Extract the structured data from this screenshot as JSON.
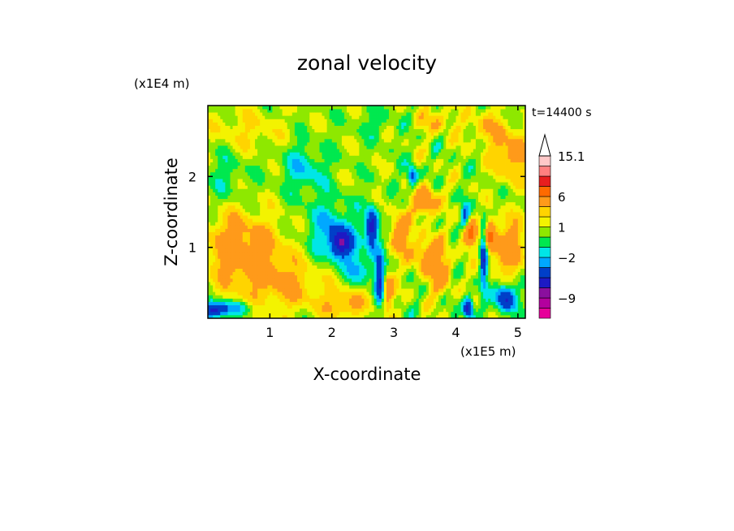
{
  "chart_data": {
    "type": "heatmap",
    "title": "zonal velocity",
    "xlabel": "X-coordinate",
    "ylabel": "Z-coordinate",
    "x_unit": "(x1E5 m)",
    "y_unit": "(x1E4 m)",
    "time_label": "t=14400 s",
    "xlim": [
      0.0,
      5.12
    ],
    "ylim": [
      0.0,
      3.0
    ],
    "x_ticks": [
      1,
      2,
      3,
      4,
      5
    ],
    "y_ticks": [
      1,
      2
    ],
    "grid": false,
    "colorbar": {
      "levels": [
        -13,
        -11,
        -9,
        -7,
        -5,
        -3,
        -2,
        -1,
        0,
        1,
        2,
        3,
        6,
        9,
        12,
        15.1
      ],
      "colors": [
        "#e6009a",
        "#b3009e",
        "#8a0f9e",
        "#1d1ac4",
        "#003fc8",
        "#00a8ff",
        "#00e6e6",
        "#00e84f",
        "#8ee800",
        "#f3f300",
        "#ffd400",
        "#ff9a1a",
        "#ff6a00",
        "#e81f1f",
        "#ff8080",
        "#ffc8c8"
      ],
      "labels": [
        {
          "value": 15.1,
          "text": "15.1"
        },
        {
          "value": 6,
          "text": "6"
        },
        {
          "value": 1,
          "text": "1"
        },
        {
          "value": -2,
          "text": "−2"
        },
        {
          "value": -9,
          "text": "−9"
        }
      ],
      "extend_max": true
    },
    "field_features": [
      {
        "x": 0.35,
        "z": 1.0,
        "value": 3,
        "sx": 0.45,
        "sz": 0.55
      },
      {
        "x": 0.9,
        "z": 0.8,
        "value": 2.5,
        "sx": 0.5,
        "sz": 0.6
      },
      {
        "x": 1.4,
        "z": 0.45,
        "value": 2,
        "sx": 0.5,
        "sz": 0.35
      },
      {
        "x": 2.2,
        "z": 0.2,
        "value": 3,
        "sx": 0.35,
        "sz": 0.2
      },
      {
        "x": 0.6,
        "z": 2.65,
        "value": 1.5,
        "sx": 0.6,
        "sz": 0.3
      },
      {
        "x": 0.3,
        "z": 2.0,
        "value": -1.2,
        "sx": 0.35,
        "sz": 0.45
      },
      {
        "x": 1.55,
        "z": 2.1,
        "value": -2.3,
        "sx": 0.35,
        "sz": 0.35
      },
      {
        "x": 2.0,
        "z": 1.25,
        "value": -2.8,
        "sx": 0.4,
        "sz": 0.4
      },
      {
        "x": 2.15,
        "z": 1.05,
        "value": -6.5,
        "sx": 0.17,
        "sz": 0.2
      },
      {
        "x": 2.65,
        "z": 1.25,
        "value": -7,
        "sx": 0.1,
        "sz": 0.3
      },
      {
        "x": 2.45,
        "z": 0.7,
        "value": -3,
        "sx": 0.2,
        "sz": 0.2
      },
      {
        "x": 2.78,
        "z": 0.55,
        "value": -6,
        "sx": 0.08,
        "sz": 0.35
      },
      {
        "x": 2.9,
        "z": 0.4,
        "value": 4,
        "sx": 0.1,
        "sz": 0.3
      },
      {
        "x": 3.1,
        "z": 1.2,
        "value": 5,
        "sx": 0.15,
        "sz": 0.25
      },
      {
        "x": 3.5,
        "z": 1.65,
        "value": 5,
        "sx": 0.2,
        "sz": 0.2
      },
      {
        "x": 3.55,
        "z": 0.9,
        "value": 4,
        "sx": 0.25,
        "sz": 0.25
      },
      {
        "x": 3.3,
        "z": 2.0,
        "value": -5,
        "sx": 0.08,
        "sz": 0.15
      },
      {
        "x": 3.75,
        "z": 0.6,
        "value": 3,
        "sx": 0.2,
        "sz": 0.3
      },
      {
        "x": 4.2,
        "z": 1.2,
        "value": 8,
        "sx": 0.12,
        "sz": 0.18
      },
      {
        "x": 4.15,
        "z": 1.35,
        "value": -5,
        "sx": 0.07,
        "sz": 0.25
      },
      {
        "x": 4.45,
        "z": 0.9,
        "value": -6,
        "sx": 0.06,
        "sz": 0.45
      },
      {
        "x": 4.55,
        "z": 1.15,
        "value": 5,
        "sx": 0.1,
        "sz": 0.25
      },
      {
        "x": 4.85,
        "z": 1.0,
        "value": 4,
        "sx": 0.25,
        "sz": 0.4
      },
      {
        "x": 4.8,
        "z": 0.3,
        "value": -6,
        "sx": 0.17,
        "sz": 0.2
      },
      {
        "x": 4.2,
        "z": 0.15,
        "value": -7,
        "sx": 0.08,
        "sz": 0.15
      },
      {
        "x": 0.1,
        "z": 0.12,
        "value": -7,
        "sx": 0.2,
        "sz": 0.12
      },
      {
        "x": 0.5,
        "z": 0.15,
        "value": -2.5,
        "sx": 0.3,
        "sz": 0.1
      },
      {
        "x": 4.9,
        "z": 2.3,
        "value": 3.5,
        "sx": 0.3,
        "sz": 0.35
      },
      {
        "x": 4.5,
        "z": 2.7,
        "value": 2,
        "sx": 0.3,
        "sz": 0.25
      },
      {
        "x": 3.7,
        "z": 2.8,
        "value": 2,
        "sx": 0.3,
        "sz": 0.2
      },
      {
        "x": 2.7,
        "z": 2.75,
        "value": -1,
        "sx": 0.3,
        "sz": 0.2
      }
    ]
  }
}
